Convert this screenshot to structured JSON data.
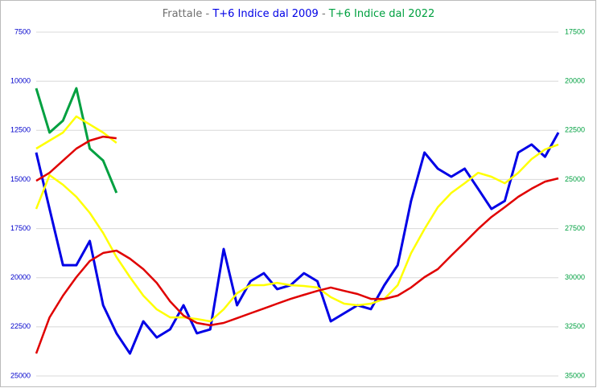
{
  "chart_data": {
    "type": "line",
    "title": "Frattale",
    "title_separator": "-",
    "categories": [
      null,
      null,
      null,
      null,
      null,
      null,
      null,
      null,
      null,
      null,
      null,
      null,
      null,
      null,
      null,
      null,
      null,
      null,
      null,
      null,
      null,
      null,
      null,
      null,
      null,
      null,
      null,
      null,
      null,
      null,
      null,
      null,
      null,
      null,
      null,
      null,
      null,
      null,
      null,
      null
    ],
    "ylim": [
      7500,
      25000
    ],
    "y_reversed": true,
    "yticks": [
      7500,
      10000,
      12500,
      15000,
      17500,
      20000,
      22500,
      25000
    ],
    "y2lim": [
      17500,
      35000
    ],
    "y2_reversed": true,
    "y2ticks": [
      17500,
      20000,
      22500,
      25000,
      27500,
      30000,
      32500,
      35000
    ],
    "grid": true,
    "series": [
      {
        "name": "T+6 Indice dal 2009",
        "color": "#0000e6",
        "values": [
          13630,
          16500,
          19360,
          19360,
          18130,
          21400,
          22830,
          23860,
          22220,
          23040,
          22630,
          21400,
          22830,
          22630,
          18540,
          21400,
          20180,
          19770,
          20580,
          20380,
          19770,
          20180,
          22220,
          21810,
          21400,
          21600,
          20380,
          19360,
          16090,
          13630,
          14450,
          14860,
          14450,
          15470,
          16500,
          16090,
          13630,
          13220,
          13840,
          12610
        ]
      },
      {
        "color": "#ffff00",
        "values": [
          16500,
          14780,
          15270,
          15880,
          16700,
          17720,
          18950,
          19970,
          20910,
          21610,
          22020,
          22020,
          22100,
          22220,
          21610,
          20790,
          20380,
          20380,
          20260,
          20380,
          20420,
          20500,
          20990,
          21320,
          21400,
          21320,
          21080,
          20380,
          18750,
          17520,
          16410,
          15680,
          15190,
          14660,
          14860,
          15190,
          14660,
          13960,
          13470,
          13220
        ]
      },
      {
        "color": "#e00000",
        "values": [
          23860,
          22020,
          20910,
          19970,
          19150,
          18740,
          18620,
          19030,
          19560,
          20260,
          21200,
          21930,
          22300,
          22420,
          22300,
          22060,
          21810,
          21570,
          21320,
          21080,
          20870,
          20670,
          20500,
          20670,
          20830,
          21080,
          21080,
          20910,
          20500,
          19970,
          19560,
          18870,
          18210,
          17520,
          16910,
          16410,
          15880,
          15470,
          15110,
          14940
        ]
      },
      {
        "name": "T+6 Indice dal 2022",
        "color": "#00a040",
        "axis": "y2",
        "values": [
          20360,
          22610,
          22000,
          20360,
          23430,
          24040,
          25680,
          null,
          null,
          null,
          null,
          null,
          null,
          null,
          null,
          null,
          null,
          null,
          null,
          null,
          null,
          null,
          null,
          null,
          null,
          null,
          null,
          null,
          null,
          null,
          null,
          null,
          null,
          null,
          null,
          null,
          null,
          null,
          null,
          null
        ]
      },
      {
        "color": "#ffff00",
        "axis": "y2",
        "values": [
          23430,
          23020,
          22610,
          21790,
          22200,
          22610,
          23140,
          null,
          null,
          null,
          null,
          null,
          null,
          null,
          null,
          null,
          null,
          null,
          null,
          null,
          null,
          null,
          null,
          null,
          null,
          null,
          null,
          null,
          null,
          null,
          null,
          null,
          null,
          null,
          null,
          null,
          null,
          null,
          null,
          null
        ]
      },
      {
        "color": "#e00000",
        "axis": "y2",
        "values": [
          25070,
          24660,
          24040,
          23430,
          23020,
          22820,
          22900,
          null,
          null,
          null,
          null,
          null,
          null,
          null,
          null,
          null,
          null,
          null,
          null,
          null,
          null,
          null,
          null,
          null,
          null,
          null,
          null,
          null,
          null,
          null,
          null,
          null,
          null,
          null,
          null,
          null,
          null,
          null,
          null,
          null
        ]
      }
    ]
  }
}
